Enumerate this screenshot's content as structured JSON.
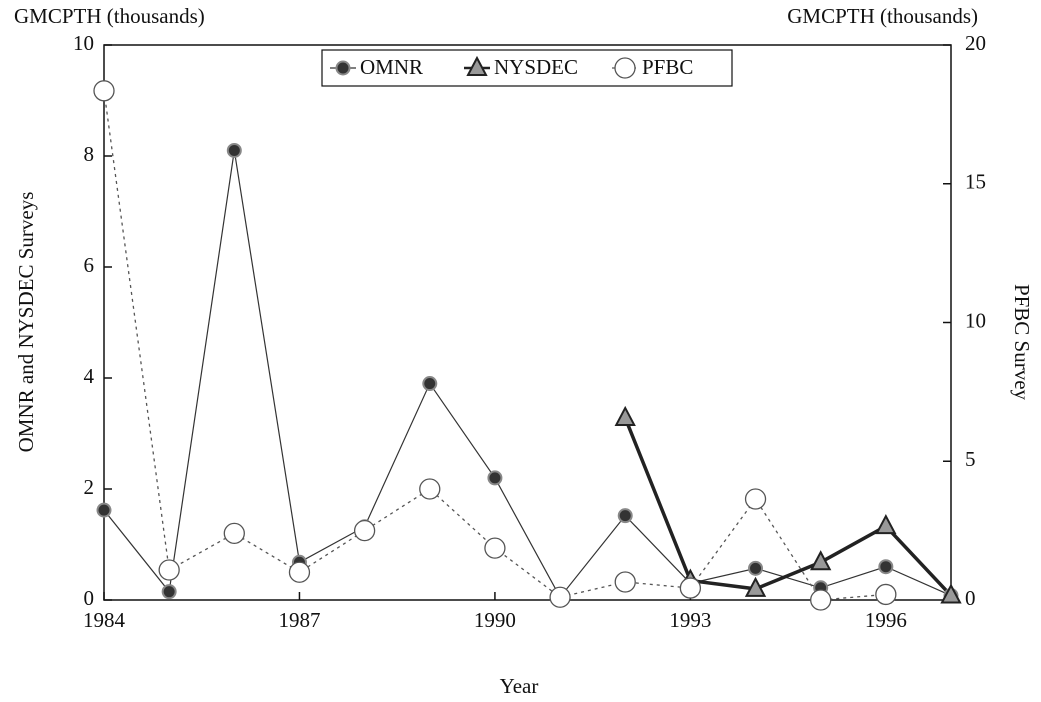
{
  "chart_data": {
    "type": "line",
    "annotations": [
      "GMCPTH (thousands)",
      "GMCPTH (thousands)"
    ],
    "xlabel": "Year",
    "ylabel": "OMNR and NYSDEC Surveys",
    "y2label": "PFBC Survey",
    "x": [
      1984,
      1985,
      1986,
      1987,
      1988,
      1989,
      1990,
      1991,
      1992,
      1993,
      1994,
      1995,
      1996,
      1997
    ],
    "xlim": [
      1984,
      1997
    ],
    "xticks": [
      1984,
      1987,
      1990,
      1993,
      1996
    ],
    "ylim": [
      0,
      10
    ],
    "yticks": [
      0,
      2,
      4,
      6,
      8,
      10
    ],
    "y2lim": [
      0,
      20
    ],
    "y2ticks": [
      0,
      5,
      10,
      15,
      20
    ],
    "legend": "top",
    "series": [
      {
        "name": "OMNR",
        "color": "#333333",
        "marker": "circle",
        "values": [
          1.62,
          0.15,
          8.1,
          0.68,
          1.32,
          3.9,
          2.2,
          0.05,
          1.52,
          0.3,
          0.57,
          0.22,
          0.6,
          0.08
        ]
      },
      {
        "name": "NYSDEC",
        "color": "#222222",
        "marker": "triangle",
        "values": [
          null,
          null,
          null,
          null,
          null,
          null,
          null,
          null,
          3.28,
          0.35,
          0.2,
          0.68,
          1.33,
          0.08
        ]
      },
      {
        "name": "PFBC",
        "color": "#555555",
        "marker": "open-circle",
        "axis": "y2",
        "values": [
          18.35,
          1.08,
          2.4,
          1.0,
          2.5,
          4.0,
          1.87,
          0.1,
          0.65,
          0.43,
          3.64,
          0.0,
          0.2,
          null
        ]
      }
    ]
  }
}
